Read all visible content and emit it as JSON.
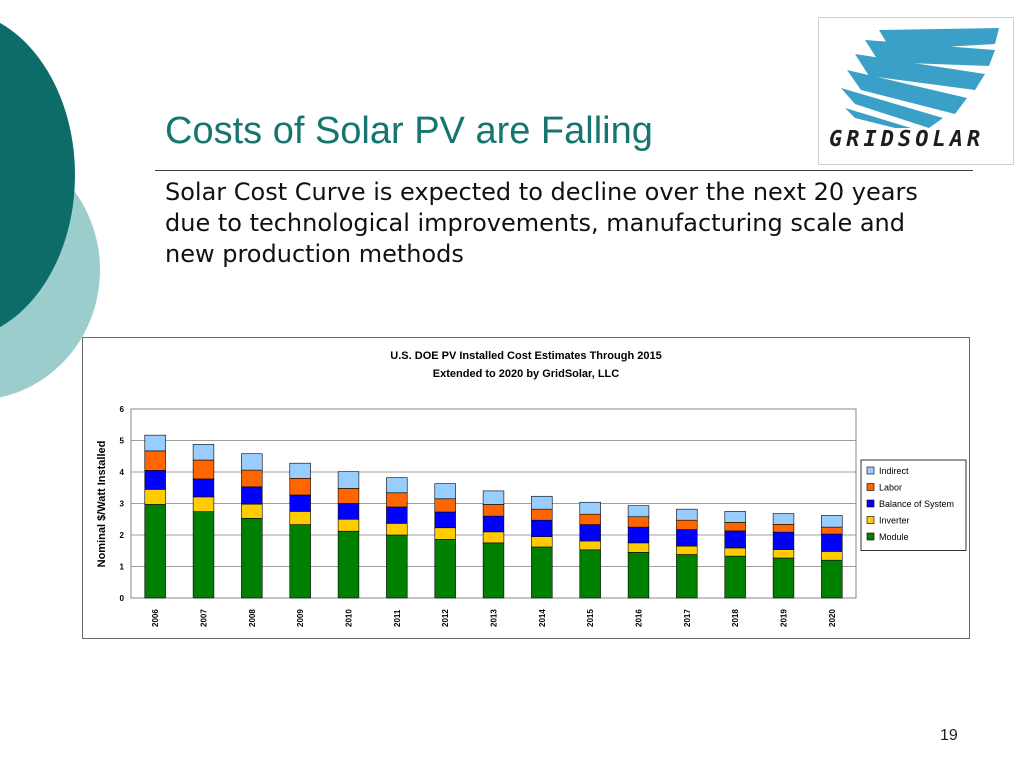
{
  "slide": {
    "title": "Costs of Solar PV are Falling",
    "subtitle": "Solar Cost Curve is expected to decline over the next 20 years due to technological improvements, manufacturing scale and new production methods",
    "page_number": "19"
  },
  "logo": {
    "text": "GRIDSOLAR",
    "icon": "sunburst-logo-icon",
    "color": "#3aa0c8"
  },
  "colors": {
    "dark_teal": "#0d6b68",
    "light_teal": "#9ccdcd",
    "title": "#14766f"
  },
  "chart_data": {
    "type": "bar",
    "stacked": true,
    "title": "U.S. DOE PV Installed Cost Estimates Through 2015",
    "subtitle": "Extended to 2020 by GridSolar, LLC",
    "xlabel": "",
    "ylabel": "Nominal $/Watt Installed",
    "ylim": [
      0,
      6
    ],
    "yticks": [
      "0",
      "1",
      "2",
      "3",
      "4",
      "5",
      "6"
    ],
    "grid": true,
    "legend_position": "right",
    "categories": [
      "2006",
      "2007",
      "2008",
      "2009",
      "2010",
      "2011",
      "2012",
      "2013",
      "2014",
      "2015",
      "2016",
      "2017",
      "2018",
      "2019",
      "2020"
    ],
    "series": [
      {
        "name": "Module",
        "color": "#008000",
        "values": [
          2.97,
          2.74,
          2.53,
          2.33,
          2.12,
          2.0,
          1.86,
          1.75,
          1.62,
          1.53,
          1.45,
          1.38,
          1.33,
          1.27,
          1.2
        ]
      },
      {
        "name": "Inverter",
        "color": "#ffcc00",
        "values": [
          0.48,
          0.47,
          0.45,
          0.42,
          0.38,
          0.37,
          0.37,
          0.35,
          0.33,
          0.28,
          0.3,
          0.27,
          0.26,
          0.27,
          0.28
        ]
      },
      {
        "name": "Balance of System",
        "color": "#0000ff",
        "values": [
          0.6,
          0.57,
          0.55,
          0.52,
          0.5,
          0.52,
          0.5,
          0.5,
          0.52,
          0.52,
          0.5,
          0.52,
          0.54,
          0.55,
          0.55
        ]
      },
      {
        "name": "Labor",
        "color": "#ff6600",
        "values": [
          0.62,
          0.6,
          0.53,
          0.53,
          0.48,
          0.45,
          0.42,
          0.37,
          0.35,
          0.33,
          0.33,
          0.3,
          0.27,
          0.25,
          0.22
        ]
      },
      {
        "name": "Indirect",
        "color": "#99ccff",
        "values": [
          0.5,
          0.5,
          0.52,
          0.48,
          0.53,
          0.48,
          0.48,
          0.43,
          0.41,
          0.38,
          0.35,
          0.35,
          0.35,
          0.34,
          0.37
        ]
      }
    ],
    "legend_order": [
      "Indirect",
      "Labor",
      "Balance of System",
      "Inverter",
      "Module"
    ]
  }
}
